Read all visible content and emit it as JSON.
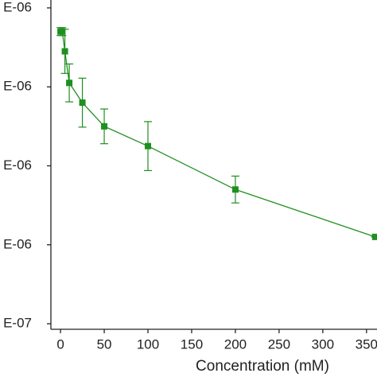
{
  "chart_data": {
    "type": "line",
    "x_label": "Concentration (mM)",
    "x": [
      0,
      2,
      5,
      10,
      25,
      50,
      100,
      200,
      360
    ],
    "series": [
      {
        "color": "#1f8f1f",
        "values": [
          1.54e-06,
          1.54e-06,
          1.49e-06,
          1.41e-06,
          1.36e-06,
          1.3e-06,
          1.25e-06,
          1.14e-06,
          1.02e-06
        ],
        "errors": [
          1e-08,
          1e-08,
          5.6e-08,
          4.8e-08,
          6.2e-08,
          4.4e-08,
          6.2e-08,
          3.4e-08,
          0
        ]
      }
    ],
    "xlim": [
      -11,
      362
    ],
    "xticks": [
      0,
      50,
      100,
      150,
      200,
      250,
      300,
      350
    ],
    "ylim": [
      7.86e-07,
      1.62e-06
    ],
    "yticks": [
      {
        "value": 8e-07,
        "label": "E-07"
      },
      {
        "value": 1e-06,
        "label": "E-06"
      },
      {
        "value": 1.2e-06,
        "label": "E-06"
      },
      {
        "value": 1.4e-06,
        "label": "E-06"
      },
      {
        "value": 1.6e-06,
        "label": "E-06"
      }
    ]
  }
}
